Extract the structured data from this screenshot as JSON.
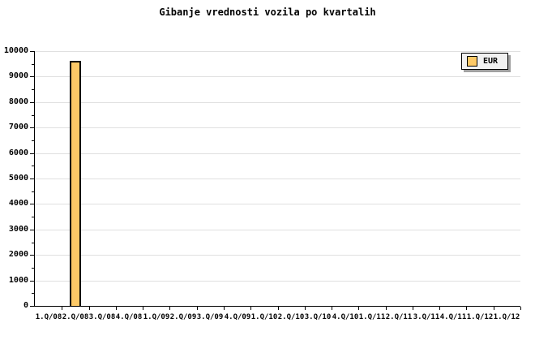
{
  "chart_data": {
    "type": "bar",
    "title": "Gibanje vrednosti vozila po kvartalih",
    "categories": [
      "1.Q/08",
      "2.Q/08",
      "3.Q/08",
      "4.Q/08",
      "1.Q/09",
      "2.Q/09",
      "3.Q/09",
      "4.Q/09",
      "1.Q/10",
      "2.Q/10",
      "3.Q/10",
      "4.Q/10",
      "1.Q/11",
      "2.Q/11",
      "3.Q/11",
      "4.Q/11",
      "1.Q/12",
      "1.Q/12"
    ],
    "series": [
      {
        "name": "EUR",
        "values": [
          0,
          9620,
          0,
          0,
          0,
          0,
          0,
          0,
          0,
          0,
          0,
          0,
          0,
          0,
          0,
          0,
          0,
          0
        ]
      }
    ],
    "xlabel": "",
    "ylabel": "",
    "ylim": [
      0,
      10000
    ],
    "ytick_step": 1000,
    "ytick_minor_step": 500,
    "ytick_labels": [
      "0",
      "1000",
      "2000",
      "3000",
      "4000",
      "5000",
      "6000",
      "7000",
      "8000",
      "9000",
      "10000"
    ],
    "grid": "horizontal",
    "legend": {
      "label": "EUR",
      "position": "top-right"
    }
  },
  "colors": {
    "bar_fill": "#FDC967",
    "bar_border": "#000000",
    "grid": "#E0E0E0",
    "axis": "#000000",
    "text": "#000000",
    "legend_bg": "#F1F1F1",
    "legend_border": "#000000",
    "legend_shadow": "#A0A0A0",
    "background": "#FFFFFF"
  }
}
